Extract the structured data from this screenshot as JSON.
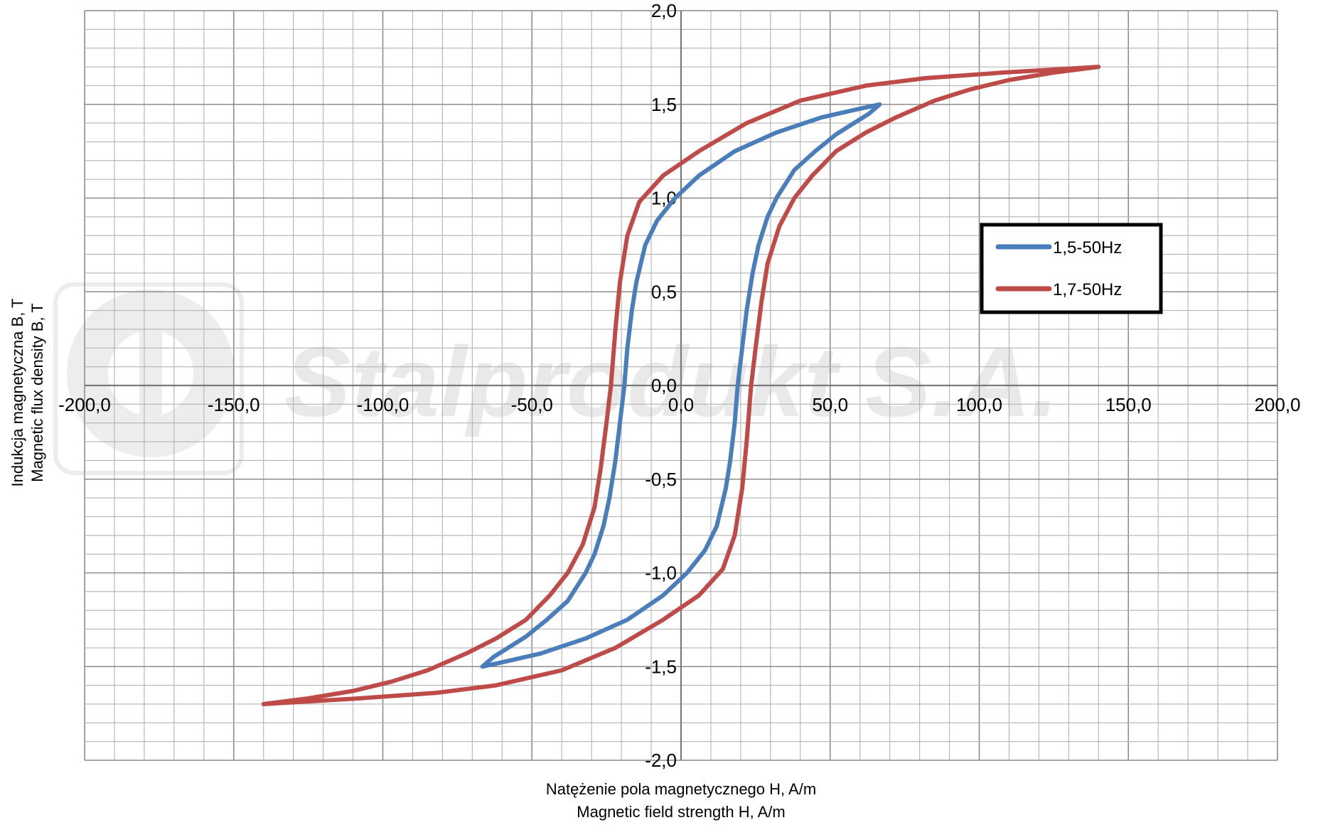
{
  "chart_data": {
    "type": "line",
    "title": "",
    "xlabel": [
      "Natężenie pola magnetycznego H, A/m",
      "Magnetic field strength H, A/m"
    ],
    "ylabel": [
      "Indukcja magnetyczna B, T",
      "Magnetic flux density B, T"
    ],
    "xlim": [
      -200,
      200
    ],
    "ylim": [
      -2,
      2
    ],
    "x_major_step": 50,
    "y_major_step": 0.5,
    "x_minor_step": 10,
    "y_minor_step": 0.1,
    "x_tick_labels": [
      "-200,0",
      "-150,0",
      "-100,0",
      "-50,0",
      "0,0",
      "50,0",
      "100,0",
      "150,0",
      "200,0"
    ],
    "y_tick_labels": [
      "2,0",
      "1,5",
      "1,0",
      "0,5",
      "0,0",
      "-0,5",
      "-1,0",
      "-1,5",
      "-2,0"
    ],
    "grid": true,
    "legend_position": "right",
    "watermark": "Stalprodukt S.A.",
    "series": [
      {
        "name": "1,5-50Hz",
        "color": "#4a7ebb",
        "points": [
          [
            -66.6,
            -1.5
          ],
          [
            -63,
            -1.45
          ],
          [
            -58,
            -1.4
          ],
          [
            -52,
            -1.34
          ],
          [
            -45,
            -1.25
          ],
          [
            -38,
            -1.15
          ],
          [
            -32,
            -1.0
          ],
          [
            -29,
            -0.9
          ],
          [
            -26,
            -0.75
          ],
          [
            -24,
            -0.6
          ],
          [
            -22,
            -0.4
          ],
          [
            -20.5,
            -0.2
          ],
          [
            -19,
            0.0
          ],
          [
            -18,
            0.2
          ],
          [
            -16.5,
            0.4
          ],
          [
            -15,
            0.55
          ],
          [
            -12,
            0.75
          ],
          [
            -8,
            0.88
          ],
          [
            -2,
            1.0
          ],
          [
            6,
            1.12
          ],
          [
            18,
            1.25
          ],
          [
            32,
            1.35
          ],
          [
            47,
            1.43
          ],
          [
            58,
            1.47
          ],
          [
            66.6,
            1.5
          ],
          [
            63,
            1.45
          ],
          [
            58,
            1.4
          ],
          [
            52,
            1.34
          ],
          [
            45,
            1.25
          ],
          [
            38,
            1.15
          ],
          [
            32,
            1.0
          ],
          [
            29,
            0.9
          ],
          [
            26,
            0.75
          ],
          [
            24,
            0.6
          ],
          [
            22,
            0.4
          ],
          [
            20.5,
            0.2
          ],
          [
            19,
            0.0
          ],
          [
            18,
            -0.2
          ],
          [
            16.5,
            -0.4
          ],
          [
            15,
            -0.55
          ],
          [
            12,
            -0.75
          ],
          [
            8,
            -0.88
          ],
          [
            2,
            -1.0
          ],
          [
            -6,
            -1.12
          ],
          [
            -18,
            -1.25
          ],
          [
            -32,
            -1.35
          ],
          [
            -47,
            -1.43
          ],
          [
            -58,
            -1.47
          ],
          [
            -66.6,
            -1.5
          ]
        ]
      },
      {
        "name": "1,7-50Hz",
        "color": "#be4b48",
        "points": [
          [
            -140,
            -1.7
          ],
          [
            -125,
            -1.67
          ],
          [
            -110,
            -1.63
          ],
          [
            -97,
            -1.58
          ],
          [
            -85,
            -1.52
          ],
          [
            -72,
            -1.43
          ],
          [
            -62,
            -1.35
          ],
          [
            -52,
            -1.25
          ],
          [
            -44,
            -1.12
          ],
          [
            -38,
            -1.0
          ],
          [
            -33,
            -0.85
          ],
          [
            -29,
            -0.65
          ],
          [
            -27,
            -0.45
          ],
          [
            -25,
            -0.2
          ],
          [
            -23.5,
            0.0
          ],
          [
            -22,
            0.3
          ],
          [
            -20.5,
            0.55
          ],
          [
            -18,
            0.8
          ],
          [
            -14,
            0.98
          ],
          [
            -6,
            1.12
          ],
          [
            6,
            1.25
          ],
          [
            22,
            1.4
          ],
          [
            40,
            1.52
          ],
          [
            62,
            1.6
          ],
          [
            82,
            1.64
          ],
          [
            108,
            1.67
          ],
          [
            140,
            1.7
          ],
          [
            125,
            1.67
          ],
          [
            110,
            1.63
          ],
          [
            97,
            1.58
          ],
          [
            85,
            1.52
          ],
          [
            72,
            1.43
          ],
          [
            62,
            1.35
          ],
          [
            52,
            1.25
          ],
          [
            44,
            1.12
          ],
          [
            38,
            1.0
          ],
          [
            33,
            0.85
          ],
          [
            29,
            0.65
          ],
          [
            27,
            0.45
          ],
          [
            25,
            0.2
          ],
          [
            23.5,
            0.0
          ],
          [
            22,
            -0.3
          ],
          [
            20.5,
            -0.55
          ],
          [
            18,
            -0.8
          ],
          [
            14,
            -0.98
          ],
          [
            6,
            -1.12
          ],
          [
            -6,
            -1.25
          ],
          [
            -22,
            -1.4
          ],
          [
            -40,
            -1.52
          ],
          [
            -62,
            -1.6
          ],
          [
            -82,
            -1.64
          ],
          [
            -108,
            -1.67
          ],
          [
            -140,
            -1.7
          ]
        ]
      }
    ]
  }
}
